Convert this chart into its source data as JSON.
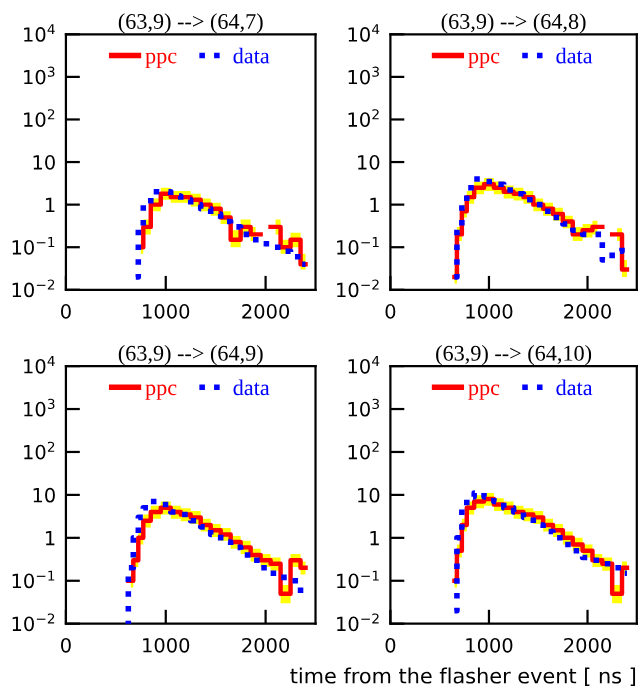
{
  "chart_data": [
    {
      "type": "step",
      "title": "(63,9) --> (64,7)",
      "x": [
        700,
        750,
        800,
        900,
        1000,
        1100,
        1200,
        1300,
        1400,
        1500,
        1600,
        1700,
        1800,
        1900,
        2000,
        2100,
        2200,
        2300,
        2400
      ],
      "xlim": [
        0,
        2500
      ],
      "xticks": [
        0,
        1000,
        2000
      ],
      "ylim": [
        0.01,
        10000
      ],
      "yticks": [
        {
          "value": 0.01,
          "label": "10$^{−2}$"
        },
        {
          "value": 0.1,
          "label": "10$^{−1}$"
        },
        1,
        10,
        {
          "value": 100,
          "label": "10$^{2}$"
        },
        {
          "value": 1000,
          "label": "10$^{3}$"
        },
        {
          "value": 10000,
          "label": "10$^{4}$"
        }
      ],
      "log": true,
      "legend": "top",
      "series": [
        {
          "name": "ppc",
          "color": "#ff0000",
          "line_style": "solid",
          "values": [
            null,
            0.1,
            0.3,
            1,
            1.8,
            1.5,
            1.5,
            1.3,
            1,
            0.8,
            0.5,
            0.15,
            0.3,
            0.2,
            null,
            0.3,
            0.1,
            0.15,
            0.04
          ],
          "upper": [
            null,
            0.15,
            0.45,
            1.4,
            2.5,
            2.1,
            2.1,
            1.8,
            1.4,
            1.1,
            0.7,
            0.25,
            0.45,
            0.3,
            null,
            0.45,
            0.15,
            0.22,
            0.07
          ],
          "lower": [
            null,
            0.07,
            0.2,
            0.7,
            1.3,
            1.1,
            1.1,
            0.9,
            0.7,
            0.55,
            0.35,
            0.1,
            0.2,
            0.14,
            null,
            0.2,
            0.07,
            0.1,
            0.03
          ]
        },
        {
          "name": "data",
          "color": "#0000ff",
          "line_style": "dotted",
          "values": [
            0.02,
            0.3,
            1,
            2,
            2,
            1.6,
            1.3,
            1.0,
            0.8,
            0.6,
            0.4,
            0.3,
            0.2,
            0.15,
            0.12,
            0.1,
            0.08,
            0.06,
            0.04
          ]
        }
      ]
    },
    {
      "type": "step",
      "title": "(63,9) --> (64,8)",
      "x": [
        650,
        700,
        750,
        800,
        900,
        1000,
        1100,
        1200,
        1300,
        1400,
        1500,
        1600,
        1700,
        1800,
        1900,
        2000,
        2100,
        2200,
        2300,
        2400
      ],
      "xlim": [
        0,
        2500
      ],
      "xticks": [
        0,
        1000,
        2000
      ],
      "ylim": [
        0.01,
        10000
      ],
      "yticks": [
        {
          "value": 0.01,
          "label": "10$^{−2}$"
        },
        {
          "value": 0.1,
          "label": "10$^{−1}$"
        },
        1,
        10,
        {
          "value": 100,
          "label": "10$^{2}$"
        },
        {
          "value": 1000,
          "label": "10$^{3}$"
        },
        {
          "value": 10000,
          "label": "10$^{4}$"
        }
      ],
      "log": true,
      "legend": "top",
      "series": [
        {
          "name": "ppc",
          "color": "#ff0000",
          "line_style": "solid",
          "values": [
            0.02,
            0.2,
            0.7,
            1.5,
            2.5,
            3,
            2.5,
            2,
            1.8,
            1.5,
            1,
            0.8,
            0.6,
            0.4,
            0.2,
            0.25,
            0.3,
            null,
            0.2,
            0.03
          ],
          "upper": [
            0.03,
            0.3,
            1,
            2.1,
            3.5,
            4.2,
            3.5,
            2.8,
            2.5,
            2.1,
            1.4,
            1.1,
            0.85,
            0.55,
            0.3,
            0.35,
            0.42,
            null,
            0.28,
            0.05
          ],
          "lower": [
            0.014,
            0.14,
            0.5,
            1.05,
            1.75,
            2.1,
            1.75,
            1.4,
            1.25,
            1.05,
            0.7,
            0.55,
            0.42,
            0.28,
            0.14,
            0.17,
            0.2,
            null,
            0.14,
            0.02
          ]
        },
        {
          "name": "data",
          "color": "#0000ff",
          "line_style": "dotted",
          "values": [
            0.02,
            0.3,
            1,
            2.5,
            4,
            3.5,
            3,
            2.2,
            1.8,
            1.3,
            1,
            0.7,
            0.5,
            0.35,
            0.25,
            0.2,
            0.2,
            0.05,
            0.08,
            0.1
          ]
        }
      ]
    },
    {
      "type": "step",
      "title": "(63,9) --> (64,9)",
      "x": [
        600,
        650,
        700,
        750,
        800,
        900,
        1000,
        1100,
        1200,
        1300,
        1400,
        1500,
        1600,
        1700,
        1800,
        1900,
        2000,
        2100,
        2200,
        2300,
        2400
      ],
      "xlim": [
        0,
        2500
      ],
      "xticks": [
        0,
        1000,
        2000
      ],
      "ylim": [
        0.01,
        10000
      ],
      "yticks": [
        {
          "value": 0.01,
          "label": "10$^{−2}$"
        },
        {
          "value": 0.1,
          "label": "10$^{−1}$"
        },
        1,
        10,
        {
          "value": 100,
          "label": "10$^{2}$"
        },
        {
          "value": 1000,
          "label": "10$^{3}$"
        },
        {
          "value": 10000,
          "label": "10$^{4}$"
        }
      ],
      "log": true,
      "legend": "top",
      "series": [
        {
          "name": "ppc",
          "color": "#ff0000",
          "line_style": "solid",
          "values": [
            null,
            0.1,
            0.3,
            1,
            2.5,
            4,
            5,
            4,
            3.5,
            3,
            2,
            1.5,
            1.2,
            0.8,
            0.6,
            0.4,
            0.3,
            0.25,
            0.05,
            0.3,
            0.2
          ],
          "upper": [
            null,
            0.14,
            0.42,
            1.4,
            3.5,
            5.6,
            7,
            5.6,
            4.9,
            4.2,
            2.8,
            2.1,
            1.7,
            1.1,
            0.85,
            0.56,
            0.42,
            0.35,
            0.08,
            0.42,
            0.28
          ],
          "lower": [
            null,
            0.07,
            0.21,
            0.7,
            1.75,
            2.8,
            3.5,
            2.8,
            2.45,
            2.1,
            1.4,
            1.05,
            0.85,
            0.56,
            0.42,
            0.28,
            0.21,
            0.17,
            0.03,
            0.21,
            0.14
          ]
        },
        {
          "name": "data",
          "color": "#0000ff",
          "line_style": "dotted",
          "values": [
            0.01,
            0.2,
            1,
            3,
            5,
            7,
            6,
            4,
            3.5,
            2.5,
            1.8,
            1.2,
            0.8,
            0.6,
            0.4,
            0.3,
            0.2,
            0.15,
            0.12,
            0.1,
            0.05
          ]
        }
      ]
    },
    {
      "type": "step",
      "title": "(63,9) --> (64,10)",
      "xlabel": "time from the flasher event [ ns ]",
      "x": [
        650,
        700,
        750,
        800,
        900,
        1000,
        1100,
        1200,
        1300,
        1400,
        1500,
        1600,
        1700,
        1800,
        1900,
        2000,
        2100,
        2200,
        2300,
        2400
      ],
      "xlim": [
        0,
        2500
      ],
      "xticks": [
        0,
        1000,
        2000
      ],
      "ylim": [
        0.01,
        10000
      ],
      "yticks": [
        {
          "value": 0.01,
          "label": "10$^{−2}$"
        },
        {
          "value": 0.1,
          "label": "10$^{−1}$"
        },
        1,
        10,
        {
          "value": 100,
          "label": "10$^{2}$"
        },
        {
          "value": 1000,
          "label": "10$^{3}$"
        },
        {
          "value": 10000,
          "label": "10$^{4}$"
        }
      ],
      "log": true,
      "legend": "top",
      "series": [
        {
          "name": "ppc",
          "color": "#ff0000",
          "line_style": "solid",
          "values": [
            0.1,
            0.5,
            2,
            5,
            7,
            8,
            6,
            5,
            4,
            3.5,
            3,
            2,
            1.5,
            1,
            0.7,
            0.5,
            0.3,
            0.25,
            0.05,
            0.2
          ],
          "upper": [
            0.14,
            0.7,
            2.8,
            7,
            9.8,
            11,
            8.4,
            7,
            5.6,
            4.9,
            4.2,
            2.8,
            2.1,
            1.4,
            1,
            0.7,
            0.42,
            0.35,
            0.08,
            0.28
          ],
          "lower": [
            0.07,
            0.35,
            1.4,
            3.5,
            4.9,
            5.6,
            4.2,
            3.5,
            2.8,
            2.45,
            2.1,
            1.4,
            1.05,
            0.7,
            0.49,
            0.35,
            0.21,
            0.17,
            0.03,
            0.14
          ]
        },
        {
          "name": "data",
          "color": "#0000ff",
          "line_style": "dotted",
          "values": [
            0.02,
            1,
            5,
            9,
            11,
            9,
            7,
            5,
            4,
            3,
            2,
            1.4,
            1,
            0.7,
            0.5,
            0.35,
            0.3,
            0.25,
            0.2,
            0.15
          ]
        }
      ]
    }
  ]
}
